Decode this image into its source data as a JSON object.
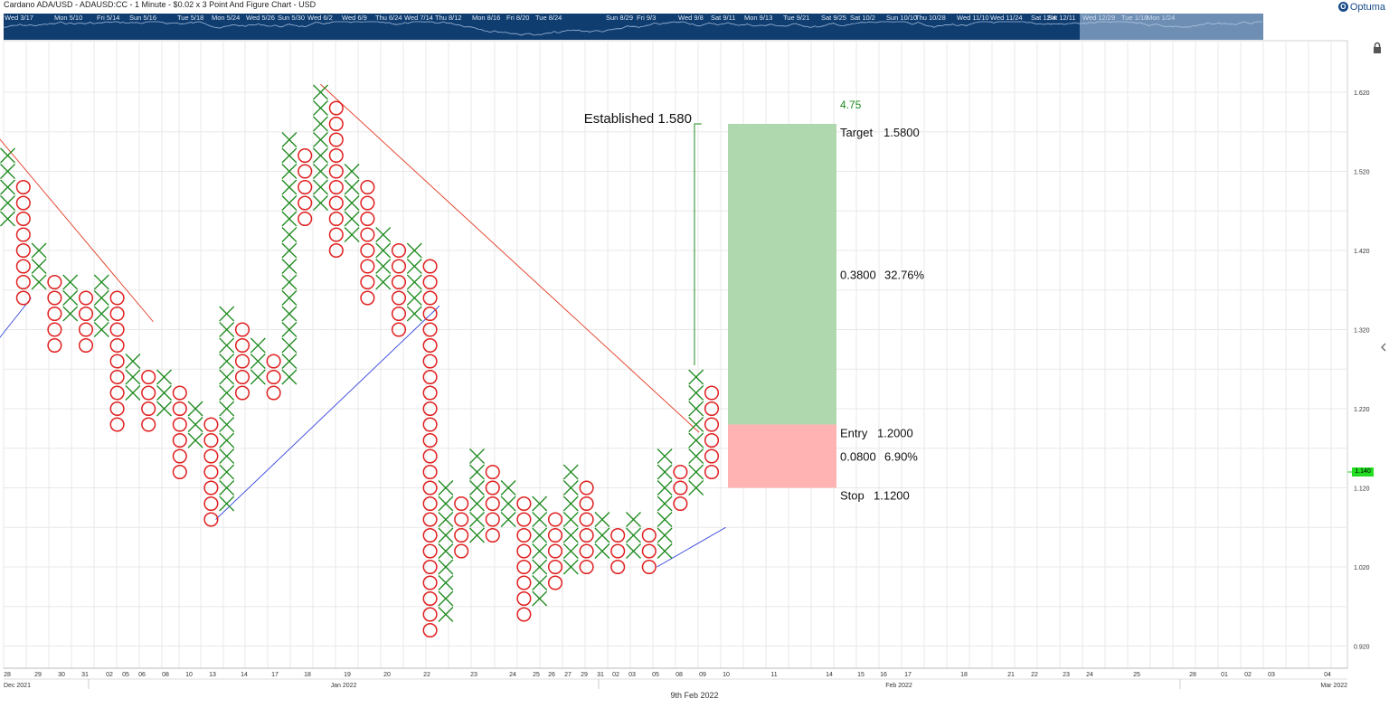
{
  "header": {
    "title": "Cardano ADA/USD - ADAUSD:CC - 1 Minute - $0.02 x 3 Point And Figure Chart - USD",
    "brand": "Optuma"
  },
  "navigator": {
    "labels": [
      "Wed 3/17",
      "Mon 5/10",
      "Fri 5/14",
      "Sun 5/16",
      "Tue 5/18",
      "Mon 5/24",
      "Wed 5/26",
      "Sun 5/30",
      "Wed 6/2",
      "Wed 6/9",
      "Thu 6/24",
      "Wed 7/14",
      "Thu 8/12",
      "Mon 8/16",
      "Fri 8/20",
      "Tue 8/24",
      "Sun 8/29",
      "Fri 9/3",
      "Wed 9/8",
      "Sat 9/11",
      "Mon 9/13",
      "Tue 9/21",
      "Sat 9/25",
      "Sat 10/2",
      "Sun 10/10",
      "Thu 10/28",
      "Wed 11/10",
      "Wed 11/24",
      "Sat 12/4",
      "Sat 12/11",
      "Wed 12/29",
      "Tue 1/18",
      "Mon 1/24"
    ]
  },
  "chart_data": {
    "type": "point-and-figure",
    "box_size": 0.02,
    "reversal": 3,
    "y_axis": {
      "ticks": [
        "1.620",
        "1.520",
        "1.420",
        "1.320",
        "1.220",
        "1.120",
        "1.020",
        "0.920"
      ],
      "range": [
        0.9,
        1.66
      ]
    },
    "x_axis": {
      "ticks": [
        "28",
        "29",
        "30",
        "31",
        "02",
        "05",
        "06",
        "08",
        "10",
        "13",
        "14",
        "17",
        "18",
        "19",
        "20",
        "22",
        "23",
        "24",
        "25",
        "26",
        "27",
        "29",
        "31",
        "02",
        "03",
        "05",
        "08",
        "09",
        "10",
        "11",
        "14",
        "15",
        "16",
        "17",
        "18",
        "21",
        "22",
        "23",
        "24",
        "25",
        "28",
        "01",
        "02",
        "03",
        "04"
      ],
      "months": [
        "Dec 2021",
        "Jan 2022",
        "Feb 2022",
        "Mar 2022"
      ]
    },
    "columns": [
      {
        "type": "X",
        "low": 1.46,
        "high": 1.54
      },
      {
        "type": "O",
        "low": 1.36,
        "high": 1.5
      },
      {
        "type": "X",
        "low": 1.38,
        "high": 1.42
      },
      {
        "type": "O",
        "low": 1.3,
        "high": 1.38
      },
      {
        "type": "X",
        "low": 1.34,
        "high": 1.38
      },
      {
        "type": "O",
        "low": 1.3,
        "high": 1.36
      },
      {
        "type": "X",
        "low": 1.32,
        "high": 1.38
      },
      {
        "type": "O",
        "low": 1.2,
        "high": 1.36
      },
      {
        "type": "X",
        "low": 1.24,
        "high": 1.28
      },
      {
        "type": "O",
        "low": 1.2,
        "high": 1.26
      },
      {
        "type": "X",
        "low": 1.22,
        "high": 1.26
      },
      {
        "type": "O",
        "low": 1.14,
        "high": 1.24
      },
      {
        "type": "X",
        "low": 1.18,
        "high": 1.22
      },
      {
        "type": "O",
        "low": 1.08,
        "high": 1.2
      },
      {
        "type": "X",
        "low": 1.1,
        "high": 1.34
      },
      {
        "type": "O",
        "low": 1.24,
        "high": 1.32
      },
      {
        "type": "X",
        "low": 1.26,
        "high": 1.3
      },
      {
        "type": "O",
        "low": 1.24,
        "high": 1.28
      },
      {
        "type": "X",
        "low": 1.26,
        "high": 1.56
      },
      {
        "type": "O",
        "low": 1.46,
        "high": 1.54
      },
      {
        "type": "X",
        "low": 1.48,
        "high": 1.62
      },
      {
        "type": "O",
        "low": 1.42,
        "high": 1.6
      },
      {
        "type": "X",
        "low": 1.44,
        "high": 1.52
      },
      {
        "type": "O",
        "low": 1.36,
        "high": 1.5
      },
      {
        "type": "X",
        "low": 1.38,
        "high": 1.44
      },
      {
        "type": "O",
        "low": 1.32,
        "high": 1.42
      },
      {
        "type": "X",
        "low": 1.34,
        "high": 1.42
      },
      {
        "type": "O",
        "low": 0.94,
        "high": 1.4
      },
      {
        "type": "X",
        "low": 0.96,
        "high": 1.12
      },
      {
        "type": "O",
        "low": 1.04,
        "high": 1.1
      },
      {
        "type": "X",
        "low": 1.06,
        "high": 1.16
      },
      {
        "type": "O",
        "low": 1.06,
        "high": 1.14
      },
      {
        "type": "X",
        "low": 1.08,
        "high": 1.12
      },
      {
        "type": "O",
        "low": 0.96,
        "high": 1.1
      },
      {
        "type": "X",
        "low": 0.98,
        "high": 1.1
      },
      {
        "type": "O",
        "low": 1.0,
        "high": 1.08
      },
      {
        "type": "X",
        "low": 1.02,
        "high": 1.14
      },
      {
        "type": "O",
        "low": 1.02,
        "high": 1.12
      },
      {
        "type": "X",
        "low": 1.04,
        "high": 1.08
      },
      {
        "type": "O",
        "low": 1.02,
        "high": 1.06
      },
      {
        "type": "X",
        "low": 1.04,
        "high": 1.08
      },
      {
        "type": "O",
        "low": 1.02,
        "high": 1.06
      },
      {
        "type": "X",
        "low": 1.04,
        "high": 1.16
      },
      {
        "type": "O",
        "low": 1.1,
        "high": 1.14
      },
      {
        "type": "X",
        "low": 1.12,
        "high": 1.26
      },
      {
        "type": "O",
        "low": 1.14,
        "high": 1.24
      }
    ],
    "trendlines": [
      {
        "color": "#e23a22",
        "from": {
          "col": -0.9,
          "price": 1.57
        },
        "to": {
          "col": 9.3,
          "price": 1.33
        }
      },
      {
        "color": "#e23a22",
        "from": {
          "col": 20.0,
          "price": 1.63
        },
        "to": {
          "col": 44.2,
          "price": 1.19
        }
      },
      {
        "color": "#3344dd",
        "from": {
          "col": -0.9,
          "price": 1.3
        },
        "to": {
          "col": 1.5,
          "price": 1.36
        }
      },
      {
        "color": "#3344dd",
        "from": {
          "col": 13.3,
          "price": 1.08
        },
        "to": {
          "col": 27.6,
          "price": 1.35
        }
      },
      {
        "color": "#3344dd",
        "from": {
          "col": 41.5,
          "price": 1.02
        },
        "to": {
          "col": 45.9,
          "price": 1.07
        }
      }
    ],
    "projection": {
      "label": "Established 1.580",
      "col": 43.9,
      "from": 1.275,
      "to": 1.58
    },
    "trade_box": {
      "target_label": "Target",
      "target": "1.5800",
      "entry_label": "Entry",
      "entry": "1.2000",
      "stop_label": "Stop",
      "stop": "1.1200",
      "ratio": "4.75",
      "reward": "0.3800",
      "reward_pct": "32.76%",
      "risk": "0.0800",
      "risk_pct": "6.90%",
      "reward_color": "#b0d8ae",
      "risk_color": "#ffb3b3"
    },
    "last_price": "1.140",
    "x_center_label": "9th Feb 2022",
    "colors": {
      "x": "#1e8a1e",
      "o": "#e02020",
      "accent": "#1f8a1f",
      "grid": "#e8e8e8"
    }
  }
}
